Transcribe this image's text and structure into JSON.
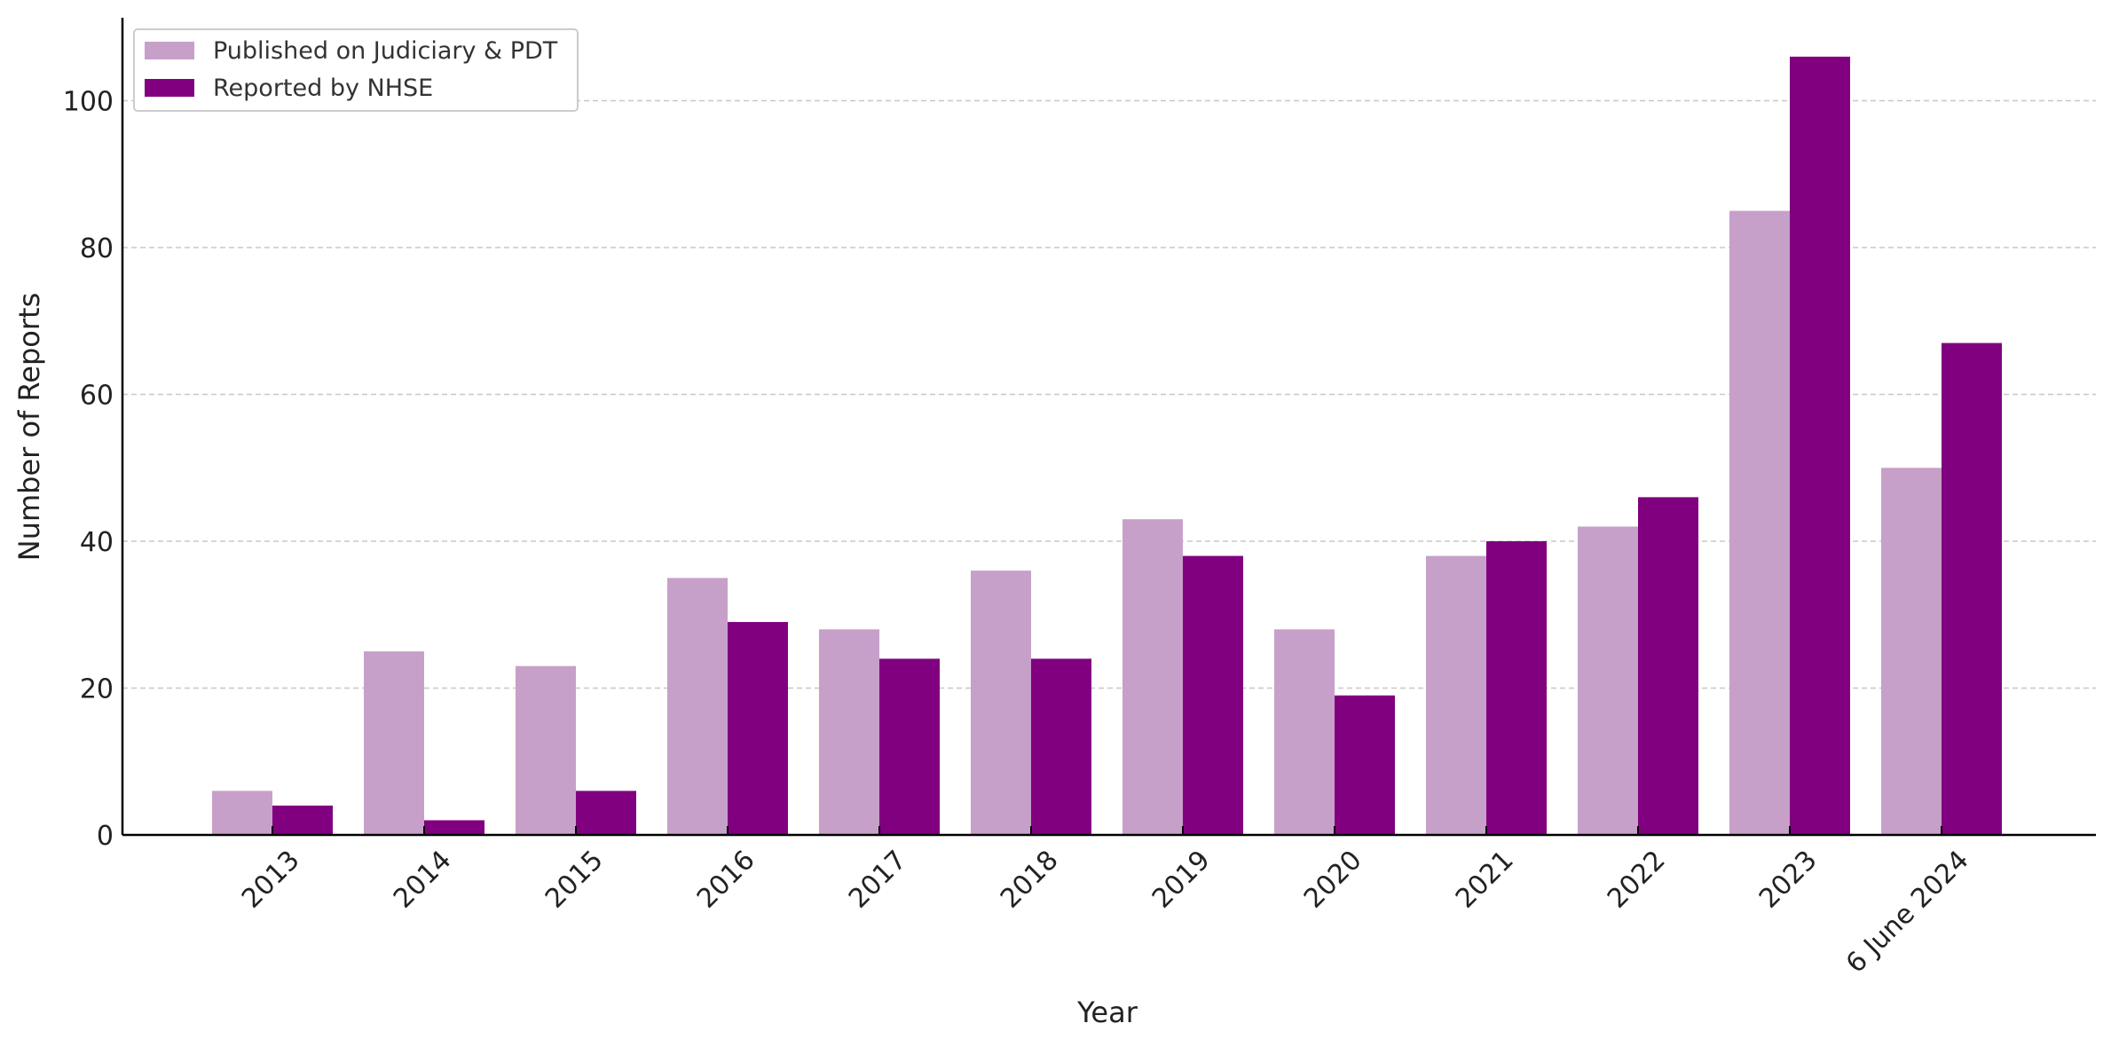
{
  "chart_data": {
    "type": "bar",
    "xlabel": "Year",
    "ylabel": "Number of Reports",
    "categories": [
      "2013",
      "2014",
      "2015",
      "2016",
      "2017",
      "2018",
      "2019",
      "2020",
      "2021",
      "2022",
      "2023",
      "6 June 2024"
    ],
    "series": [
      {
        "name": "Published on Judiciary & PDT",
        "color": "#c7a0c9",
        "values": [
          6,
          25,
          23,
          35,
          28,
          36,
          43,
          28,
          38,
          42,
          85,
          50
        ]
      },
      {
        "name": "Reported by NHSE",
        "color": "#800080",
        "values": [
          4,
          2,
          6,
          29,
          24,
          24,
          38,
          19,
          40,
          46,
          106,
          67
        ]
      }
    ],
    "ylim": [
      0,
      111.3
    ],
    "yticks": [
      0,
      20,
      40,
      60,
      80,
      100
    ],
    "grid": "y-dashed",
    "legend_position": "top-left"
  }
}
